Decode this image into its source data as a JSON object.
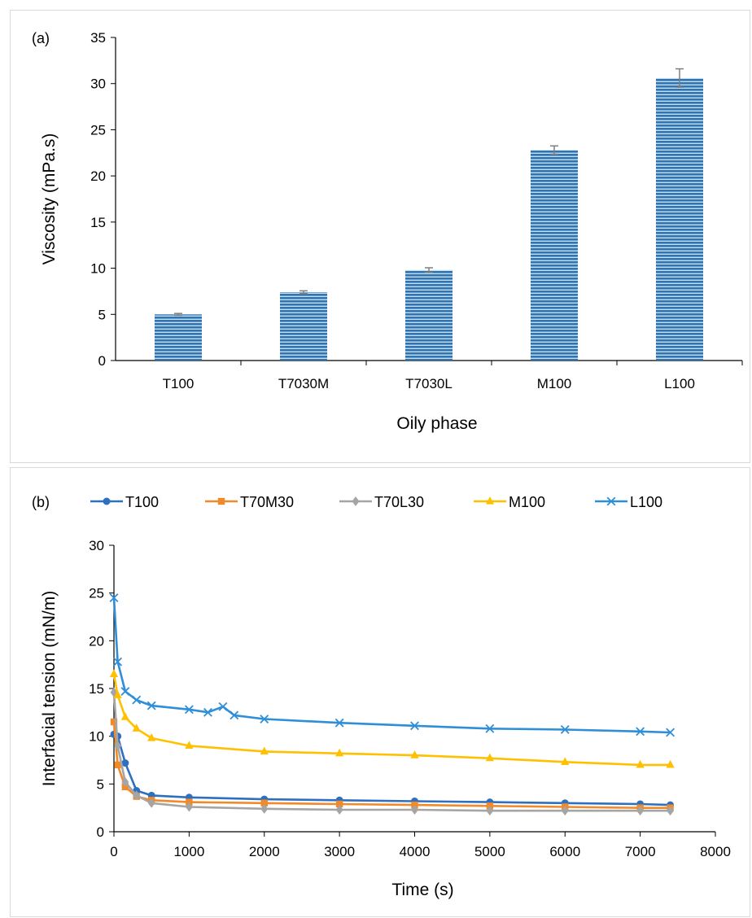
{
  "chart_data": [
    {
      "type": "bar",
      "panel_label": "(a)",
      "title": "",
      "xlabel": "Oily phase",
      "ylabel": "Viscosity (mPa.s)",
      "ylim": [
        0,
        35
      ],
      "yticks": [
        0,
        5,
        10,
        15,
        20,
        25,
        30,
        35
      ],
      "categories": [
        "T100",
        "T7030M",
        "T7030L",
        "M100",
        "L100"
      ],
      "values": [
        5.0,
        7.4,
        9.8,
        22.8,
        30.6
      ],
      "errors": [
        0.1,
        0.15,
        0.25,
        0.45,
        1.0
      ],
      "grid": false,
      "legend": "none",
      "colors": {
        "bar": "#2e75b6",
        "bar_light": "#ffffff",
        "error_bar": "#7f7f7f"
      }
    },
    {
      "type": "line",
      "panel_label": "(b)",
      "title": "",
      "xlabel": "Time (s)",
      "ylabel": "Interfacial tension (mN/m)",
      "xlim": [
        0,
        8000
      ],
      "ylim": [
        0,
        30
      ],
      "xticks": [
        0,
        1000,
        2000,
        3000,
        4000,
        5000,
        6000,
        7000,
        8000
      ],
      "yticks": [
        0,
        5,
        10,
        15,
        20,
        25,
        30
      ],
      "grid": false,
      "legend": "top",
      "series": [
        {
          "name": "T100",
          "color": "#2e6fc0",
          "marker": "circle",
          "x": [
            0,
            50,
            150,
            300,
            500,
            1000,
            2000,
            3000,
            4000,
            5000,
            6000,
            7000,
            7400
          ],
          "y": [
            10.2,
            10.0,
            7.2,
            4.3,
            3.8,
            3.6,
            3.4,
            3.3,
            3.2,
            3.1,
            3.0,
            2.9,
            2.8
          ]
        },
        {
          "name": "T70M30",
          "color": "#f08a2a",
          "marker": "square",
          "x": [
            0,
            50,
            150,
            300,
            500,
            1000,
            2000,
            3000,
            4000,
            5000,
            6000,
            7000,
            7400
          ],
          "y": [
            11.5,
            7.0,
            4.7,
            3.7,
            3.3,
            3.1,
            3.0,
            2.9,
            2.8,
            2.7,
            2.6,
            2.5,
            2.5
          ]
        },
        {
          "name": "T70L30",
          "color": "#a5a5a5",
          "marker": "diamond",
          "x": [
            0,
            50,
            150,
            300,
            500,
            1000,
            2000,
            3000,
            4000,
            5000,
            6000,
            7000,
            7400
          ],
          "y": [
            14.6,
            9.0,
            5.2,
            3.8,
            3.0,
            2.6,
            2.4,
            2.3,
            2.3,
            2.2,
            2.2,
            2.2,
            2.2
          ]
        },
        {
          "name": "M100",
          "color": "#ffc000",
          "marker": "triangle",
          "x": [
            0,
            50,
            150,
            300,
            500,
            1000,
            2000,
            3000,
            4000,
            5000,
            6000,
            7000,
            7400
          ],
          "y": [
            16.5,
            14.3,
            12.0,
            10.8,
            9.8,
            9.0,
            8.4,
            8.2,
            8.0,
            7.7,
            7.3,
            7.0,
            7.0
          ]
        },
        {
          "name": "L100",
          "color": "#2e8fd8",
          "marker": "x",
          "x": [
            0,
            50,
            150,
            300,
            500,
            1000,
            1250,
            1450,
            1600,
            2000,
            3000,
            4000,
            5000,
            6000,
            7000,
            7400
          ],
          "y": [
            24.5,
            17.8,
            14.7,
            13.8,
            13.2,
            12.8,
            12.5,
            13.1,
            12.2,
            11.8,
            11.4,
            11.1,
            10.8,
            10.7,
            10.5,
            10.4
          ]
        }
      ]
    }
  ]
}
